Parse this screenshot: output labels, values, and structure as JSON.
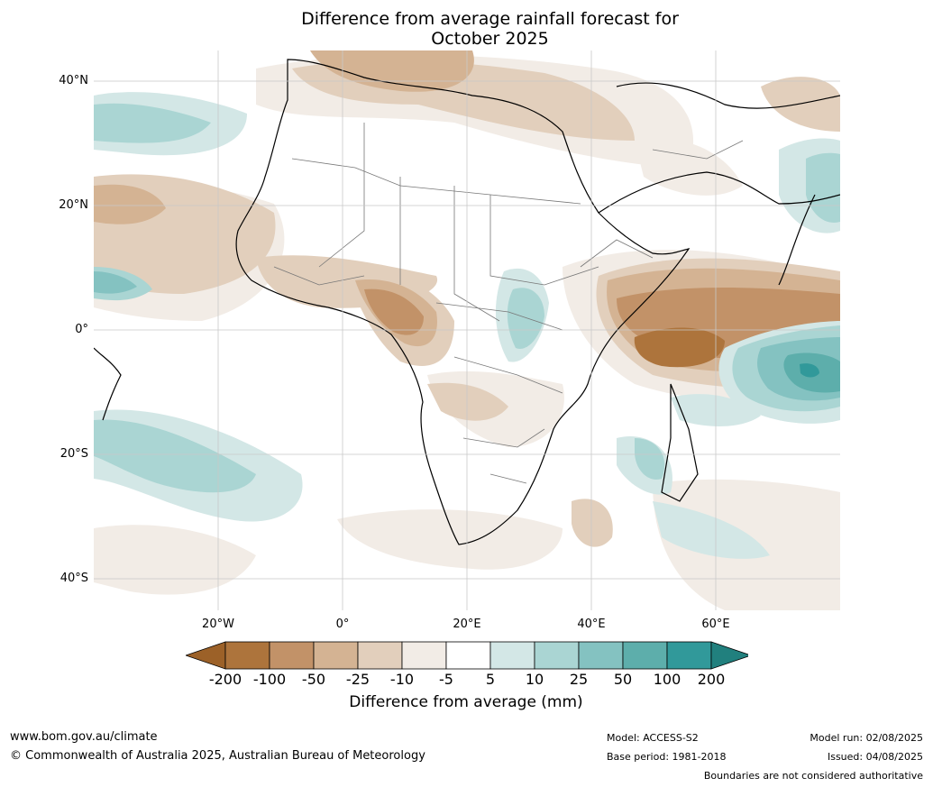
{
  "title_line1": "Difference from average rainfall forecast for",
  "title_line2": "October 2025",
  "lat_labels": [
    "40°N",
    "20°N",
    "0°",
    "20°S",
    "40°S"
  ],
  "lon_labels": [
    "20°W",
    "0°",
    "20°E",
    "40°E",
    "60°E"
  ],
  "colorbar": {
    "ticks": [
      "-200",
      "-100",
      "-50",
      "-25",
      "-10",
      "-5",
      "5",
      "10",
      "25",
      "50",
      "100",
      "200"
    ],
    "colors": [
      "#9c6128",
      "#ad743c",
      "#c29268",
      "#d4b393",
      "#e2cfbc",
      "#f2ece6",
      "#ffffff",
      "#d3e7e6",
      "#aad5d3",
      "#84c2c1",
      "#5daeab",
      "#31999a",
      "#21807e"
    ],
    "label": "Difference from average (mm)"
  },
  "footer": {
    "url": "www.bom.gov.au/climate",
    "copyright": "© Commonwealth of Australia 2025, Australian Bureau of Meteorology",
    "model": "Model: ACCESS-S2",
    "base_period": "Base period: 1981-2018",
    "model_run": "Model run: 02/08/2025",
    "issued": "Issued: 04/08/2025",
    "disclaimer": "Boundaries are not considered authoritative"
  }
}
